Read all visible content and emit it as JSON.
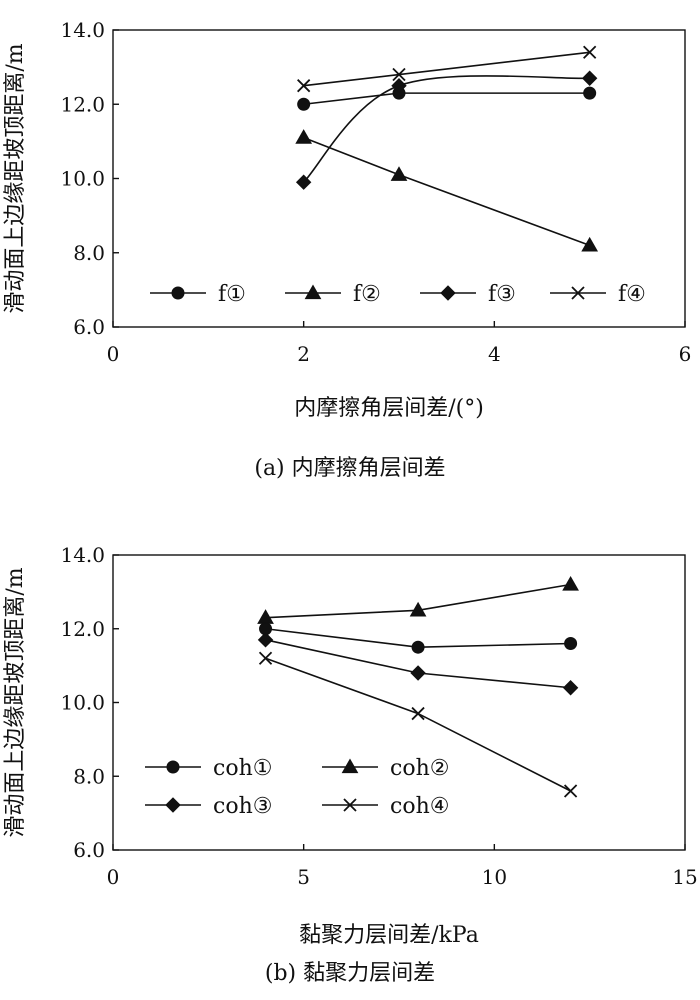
{
  "chart_data": [
    {
      "type": "line",
      "title": "",
      "caption": "(a) 内摩擦角层间差",
      "xlabel": "内摩擦角层间差/(°)",
      "ylabel": "滑动面上边缘距坡顶距离/m",
      "xlim": [
        0,
        6
      ],
      "ylim": [
        6.0,
        14.0
      ],
      "xticks": [
        "0",
        "2",
        "4",
        "6"
      ],
      "yticks": [
        "6.0",
        "8.0",
        "10.0",
        "12.0",
        "14.0"
      ],
      "grid": false,
      "legend_position": "bottom-inside",
      "series": [
        {
          "name": "f①",
          "marker": "circle",
          "x": [
            2,
            3,
            5
          ],
          "y": [
            12.0,
            12.3,
            12.3
          ]
        },
        {
          "name": "f②",
          "marker": "triangle",
          "x": [
            2,
            3,
            5
          ],
          "y": [
            11.1,
            10.1,
            8.2
          ]
        },
        {
          "name": "f③",
          "marker": "diamond",
          "x": [
            2,
            3,
            5
          ],
          "y": [
            9.9,
            12.5,
            12.7
          ]
        },
        {
          "name": "f④",
          "marker": "cross",
          "x": [
            2,
            3,
            5
          ],
          "y": [
            12.5,
            12.8,
            13.4
          ]
        }
      ]
    },
    {
      "type": "line",
      "title": "",
      "caption": "(b) 黏聚力层间差",
      "xlabel": "黏聚力层间差/kPa",
      "ylabel": "滑动面上边缘距坡顶距离/m",
      "xlim": [
        0,
        15
      ],
      "ylim": [
        6.0,
        14.0
      ],
      "xticks": [
        "0",
        "5",
        "10",
        "15"
      ],
      "yticks": [
        "6.0",
        "8.0",
        "10.0",
        "12.0",
        "14.0"
      ],
      "grid": false,
      "legend_position": "bottom-left-inside",
      "series": [
        {
          "name": "coh①",
          "marker": "circle",
          "x": [
            4,
            8,
            12
          ],
          "y": [
            12.0,
            11.5,
            11.6
          ]
        },
        {
          "name": "coh②",
          "marker": "triangle",
          "x": [
            4,
            8,
            12
          ],
          "y": [
            12.3,
            12.5,
            13.2
          ]
        },
        {
          "name": "coh③",
          "marker": "diamond",
          "x": [
            4,
            8,
            12
          ],
          "y": [
            11.7,
            10.8,
            10.4
          ]
        },
        {
          "name": "coh④",
          "marker": "cross",
          "x": [
            4,
            8,
            12
          ],
          "y": [
            11.2,
            9.7,
            7.6
          ]
        }
      ]
    }
  ]
}
